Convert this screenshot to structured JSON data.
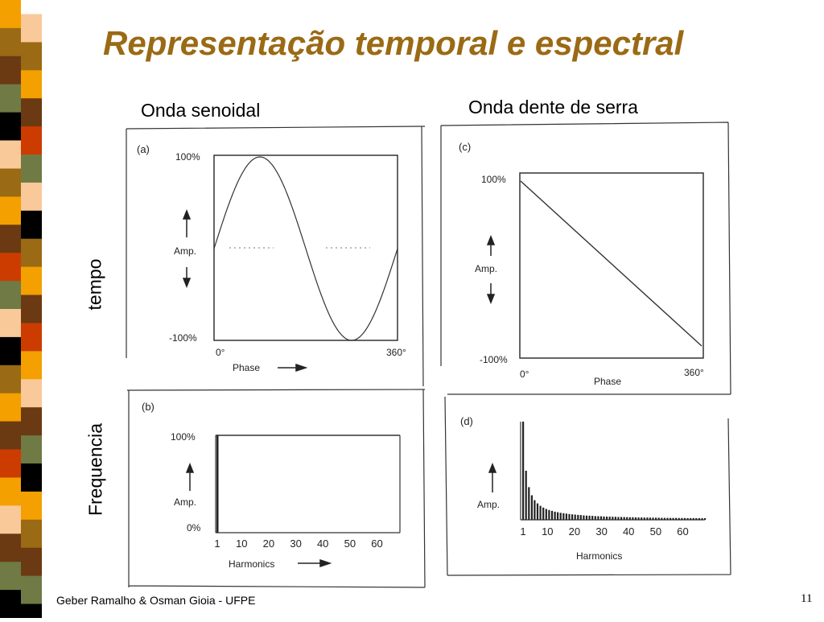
{
  "slide": {
    "title": "Representação temporal e espectral",
    "col_left": "Onda senoidal",
    "col_right": "Onda dente de serra",
    "row_top": "tempo",
    "row_bottom": "Frequencia",
    "footer": "Geber Ramalho & Osman Gioia - UFPE",
    "page": "11",
    "accent_color": "#9a6a14",
    "stripe_colors": [
      "#f4a000",
      "#9a6a14",
      "#6b3a12",
      "#6f7a45",
      "#000000",
      "#f9c999",
      "#9a6a14",
      "#f4a000",
      "#6b3a12",
      "#cc3c00",
      "#6f7a45",
      "#f9c999",
      "#000000",
      "#9a6a14",
      "#f4a000",
      "#6b3a12",
      "#cc3c00",
      "#f4a000",
      "#f9c999",
      "#6b3a12",
      "#6f7a45",
      "#000000"
    ]
  },
  "chart_data": [
    {
      "type": "line",
      "panel": "(a)",
      "series": [
        {
          "x": [
            0,
            45,
            90,
            135,
            180,
            225,
            270,
            315,
            360
          ],
          "values": [
            0,
            71,
            100,
            71,
            0,
            -71,
            -100,
            -71,
            0
          ]
        }
      ],
      "ytick_labels": [
        "100%",
        "-100%"
      ],
      "ylabel": "Amp.",
      "xtick_labels": [
        "0°",
        "360°"
      ],
      "xlabel": "Phase",
      "xlim": [
        0,
        360
      ],
      "ylim": [
        -100,
        100
      ]
    },
    {
      "type": "bar",
      "panel": "(b)",
      "categories": [
        1
      ],
      "values": [
        100
      ],
      "ytick_labels": [
        "100%",
        "0%"
      ],
      "ylabel": "Amp.",
      "xtick_labels": [
        "1",
        "10",
        "20",
        "30",
        "40",
        "50",
        "60"
      ],
      "xlabel": "Harmonics",
      "xlim": [
        1,
        64
      ],
      "ylim": [
        0,
        100
      ]
    },
    {
      "type": "line",
      "panel": "(c)",
      "series": [
        {
          "x": [
            0,
            360
          ],
          "values": [
            100,
            -100
          ]
        }
      ],
      "ytick_labels": [
        "100%",
        "-100%"
      ],
      "ylabel": "Amp.",
      "xtick_labels": [
        "0°",
        "360°"
      ],
      "xlabel": "Phase",
      "xlim": [
        0,
        360
      ],
      "ylim": [
        -100,
        100
      ]
    },
    {
      "type": "bar",
      "panel": "(d)",
      "categories": [
        1,
        2,
        3,
        4,
        5,
        6,
        7,
        8,
        9,
        10,
        11,
        12,
        13,
        14,
        15,
        16,
        17,
        18,
        19,
        20,
        21,
        22,
        23,
        24,
        25,
        26,
        27,
        28,
        29,
        30,
        31,
        32,
        33,
        34,
        35,
        36,
        37,
        38,
        39,
        40,
        41,
        42,
        43,
        44,
        45,
        46,
        47,
        48,
        49,
        50,
        51,
        52,
        53,
        54,
        55,
        56,
        57,
        58,
        59,
        60,
        61,
        62,
        63,
        64
      ],
      "values": [
        100,
        50,
        33.3,
        25,
        20,
        16.7,
        14.3,
        12.5,
        11.1,
        10,
        9.1,
        8.3,
        7.7,
        7.1,
        6.7,
        6.3,
        5.9,
        5.6,
        5.3,
        5,
        4.8,
        4.5,
        4.3,
        4.2,
        4,
        3.8,
        3.7,
        3.6,
        3.4,
        3.3,
        3.2,
        3.1,
        3,
        2.9,
        2.9,
        2.8,
        2.7,
        2.6,
        2.6,
        2.5,
        2.4,
        2.4,
        2.3,
        2.3,
        2.2,
        2.2,
        2.1,
        2.1,
        2,
        2,
        2,
        1.9,
        1.9,
        1.9,
        1.8,
        1.8,
        1.8,
        1.7,
        1.7,
        1.7,
        1.6,
        1.6,
        1.6,
        1.6
      ],
      "ylabel": "Amp.",
      "xtick_labels": [
        "1",
        "10",
        "20",
        "30",
        "40",
        "50",
        "60"
      ],
      "xlabel": "Harmonics",
      "xlim": [
        1,
        64
      ],
      "ylim": [
        0,
        100
      ]
    }
  ]
}
